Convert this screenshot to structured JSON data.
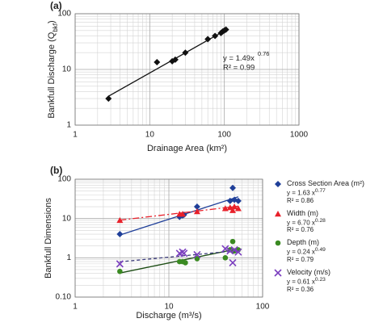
{
  "chart_data": [
    {
      "type": "scatter",
      "panel_label": "(a)",
      "xlabel": "Drainage Area (km²)",
      "ylabel": [
        "Bankfull Discharge (Q",
        "bkf",
        ")"
      ],
      "log_x": true,
      "log_y": true,
      "grid": true,
      "minor_grid": true,
      "xlim": [
        1,
        1000
      ],
      "xticks": [
        1,
        10,
        100,
        1000
      ],
      "ylim": [
        1,
        100
      ],
      "yticks": [
        1,
        10,
        100
      ],
      "series": [
        {
          "color": "#111111",
          "marker": "diamond",
          "x": [
            2.8,
            12.5,
            20,
            22,
            30,
            60,
            75,
            90,
            95,
            100,
            105
          ],
          "values": [
            3,
            13.5,
            14,
            15,
            20,
            35,
            40,
            45,
            48,
            50,
            52
          ],
          "trend": {
            "x": [
              2.8,
              110
            ],
            "values": [
              3.3,
              53
            ],
            "color": "#111111",
            "dash": "none"
          },
          "equation": "y = 1.49x",
          "exponent": "0.76",
          "r2": "R² = 0.99"
        }
      ]
    },
    {
      "type": "scatter",
      "panel_label": "(b)",
      "xlabel": "Discharge (m³/s)",
      "ylabel": [
        "Bankfull Dimensions"
      ],
      "log_x": true,
      "log_y": true,
      "grid": true,
      "minor_grid": true,
      "xlim": [
        1,
        100
      ],
      "xticks": [
        1,
        10,
        100
      ],
      "ylim": [
        0.1,
        100
      ],
      "yticks": [
        {
          "value": 0.1,
          "label": "0.10"
        },
        1,
        10,
        100
      ],
      "series": [
        {
          "name": "Cross Section Area (m²)",
          "color": "#1f3f99",
          "marker": "diamond",
          "x": [
            3,
            13,
            14,
            14.5,
            20,
            45,
            48,
            50,
            55
          ],
          "values": [
            4,
            11,
            12,
            12.5,
            20,
            28,
            60,
            30,
            28
          ],
          "trend": {
            "x": [
              3,
              55
            ],
            "values": [
              3.8,
              35.7
            ],
            "color": "#1f3f99",
            "dash": "none"
          },
          "equation": "y = 1.63 x",
          "exponent": "0.77",
          "r2": "R² = 0.86"
        },
        {
          "name": "Width (m)",
          "color": "#e8202a",
          "marker": "triangle",
          "x": [
            3,
            13,
            14,
            20,
            40,
            45,
            48,
            50,
            55
          ],
          "values": [
            9,
            13,
            13,
            15,
            18,
            19,
            16,
            20,
            18
          ],
          "trend": {
            "x": [
              3,
              55
            ],
            "values": [
              9.1,
              20.6
            ],
            "color": "#e8202a",
            "dash": "8 3 2 3"
          },
          "equation": "y = 6.70 x",
          "exponent": "0.28",
          "r2": "R² = 0.76"
        },
        {
          "name": "Depth (m)",
          "color": "#3a8a22",
          "marker": "circle",
          "x": [
            3,
            13,
            14,
            15,
            20,
            40,
            45,
            48,
            50,
            55
          ],
          "values": [
            0.45,
            0.8,
            0.8,
            0.75,
            0.95,
            1.0,
            1.6,
            2.6,
            1.5,
            1.6
          ],
          "trend": {
            "x": [
              3,
              55
            ],
            "values": [
              0.41,
              1.71
            ],
            "color": "#1d4d15",
            "dash": "none"
          },
          "equation": "y = 0.24 x",
          "exponent": "0.49",
          "r2": "R² = 0.79"
        },
        {
          "name": "Velocity (m/s)",
          "color": "#7b3fbf",
          "marker": "x",
          "x": [
            3,
            13,
            14,
            14.5,
            20,
            40,
            45,
            48,
            50,
            55
          ],
          "values": [
            0.7,
            1.3,
            1.4,
            1.3,
            1.2,
            1.7,
            1.5,
            0.75,
            1.6,
            1.4
          ],
          "trend": {
            "x": [
              3,
              55
            ],
            "values": [
              0.79,
              1.53
            ],
            "color": "#3a3a7a",
            "dash": "4 3"
          },
          "equation": "y = 0.61 x",
          "exponent": "0.23",
          "r2": "R² = 0.36"
        }
      ]
    }
  ]
}
